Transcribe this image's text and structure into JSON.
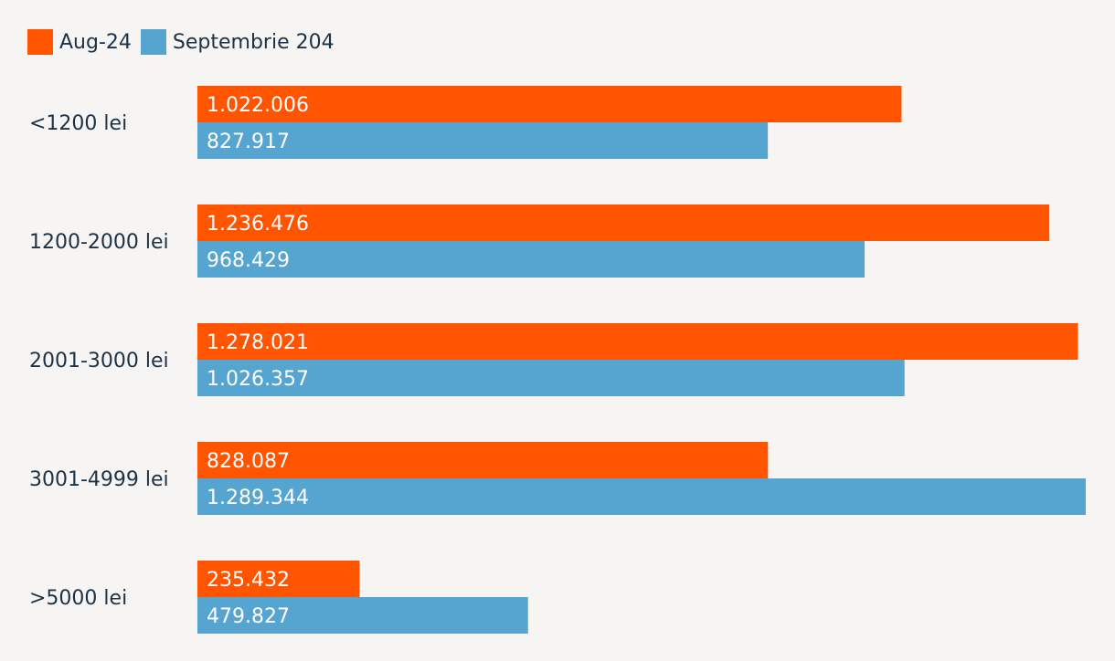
{
  "chart_data": {
    "type": "bar",
    "orientation": "horizontal",
    "categories": [
      "<1200 lei",
      "1200-2000 lei",
      "2001-3000 lei",
      "3001-4999 lei",
      ">5000 lei"
    ],
    "series": [
      {
        "name": "Aug-24",
        "color": "#FF5500",
        "values": [
          1022006,
          1236476,
          1278021,
          828087,
          235432
        ],
        "labels": [
          "1.022.006",
          "1.236.476",
          "1.278.021",
          "828.087",
          "235.432"
        ]
      },
      {
        "name": "Septembrie 204",
        "color": "#56A4D0",
        "values": [
          827917,
          968429,
          1026357,
          1289344,
          479827
        ],
        "labels": [
          "827.917",
          "968.429",
          "1.026.357",
          "1.289.344",
          "479.827"
        ]
      }
    ],
    "xlim": [
      0,
      1289344
    ],
    "grid": false,
    "legend": "top-left",
    "title": "",
    "xlabel": "",
    "ylabel": ""
  }
}
